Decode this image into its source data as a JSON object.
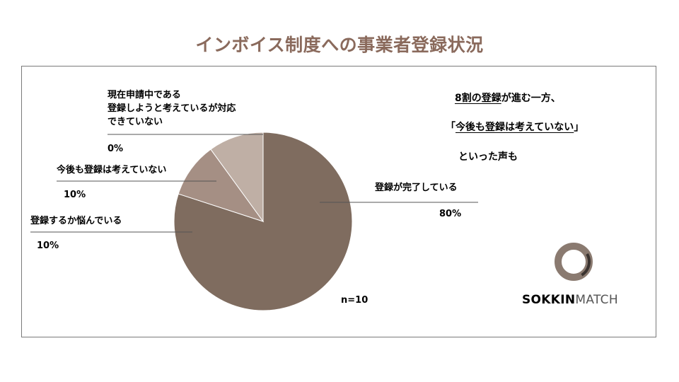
{
  "title": "インボイス制度への事業者登録状況",
  "chart_data": {
    "type": "pie",
    "slices": [
      {
        "label": "登録が完了している",
        "value": 80,
        "value_label": "80%",
        "color": "#7f6c5f"
      },
      {
        "label": "登録するか悩んでいる",
        "value": 10,
        "value_label": "10%",
        "color": "#a58f84"
      },
      {
        "label": "今後も登録は考えていない",
        "value": 10,
        "value_label": "10%",
        "color": "#bfafa5"
      },
      {
        "label_lines": [
          "現在申請中である",
          "登録しようと考えているが対応",
          "できていない"
        ],
        "value": 0,
        "value_label": "0%",
        "color": "#d9cfc8"
      }
    ],
    "n_label": "n=10"
  },
  "annotation": {
    "line1_prefix": "8割の登録",
    "line1_suffix": "が進む一方、",
    "line2_open": "「",
    "line2_quote": "今後も登録は考えていない",
    "line2_close": "」",
    "line3": "といった声も"
  },
  "logo": {
    "bold": "SOKKIN",
    "light": "MATCH"
  }
}
